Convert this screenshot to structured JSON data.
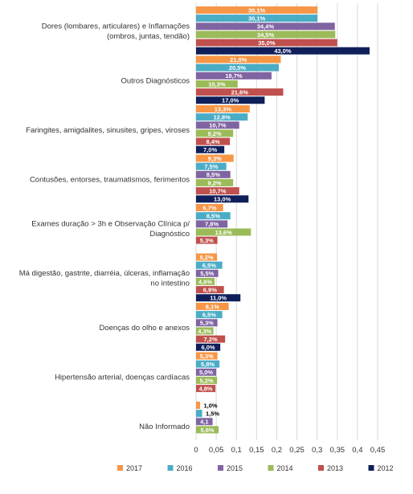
{
  "chart_data": {
    "type": "bar",
    "orientation": "horizontal",
    "categories": [
      [
        "Dores (lombares, articulares) e Inflamações",
        "(ombros, juntas, tendão)"
      ],
      [
        "Outros Diagnósticos"
      ],
      [
        "Faringites, amigdalites, sinusites, gripes, viroses"
      ],
      [
        "Contusões, entorses, traumatismos, ferimentos"
      ],
      [
        "Exames duração > 3h e Observação Clínica p/",
        "Diagnóstico"
      ],
      [
        "Má digestão, gastrite, diarréia, úlceras, inflamação",
        "no intestino"
      ],
      [
        "Doenças do olho e anexos"
      ],
      [
        "Hipertensão arterial, doenças cardíacas"
      ],
      [
        "Não Informado"
      ]
    ],
    "series": [
      {
        "name": "2017",
        "color": "#f79646",
        "values": [
          0.301,
          0.21,
          0.133,
          0.093,
          0.067,
          0.052,
          0.081,
          0.053,
          0.01
        ],
        "labels": [
          "30,1%",
          "21,0%",
          "13,3%",
          "9,3%",
          "6,7%",
          "5,2%",
          "8,1%",
          "5,3%",
          "1,0%"
        ]
      },
      {
        "name": "2016",
        "color": "#4bacc6",
        "values": [
          0.301,
          0.205,
          0.128,
          0.075,
          0.085,
          0.065,
          0.065,
          0.058,
          0.015
        ],
        "labels": [
          "30,1%",
          "20,5%",
          "12,8%",
          "7,5%",
          "8,5%",
          "6,5%",
          "6,5%",
          "5,8%",
          "1,5%"
        ]
      },
      {
        "name": "2015",
        "color": "#8064a2",
        "values": [
          0.344,
          0.187,
          0.107,
          0.085,
          0.078,
          0.055,
          0.053,
          0.05,
          0.041
        ],
        "labels": [
          "34,4%",
          "18,7%",
          "10,7%",
          "8,5%",
          "7,8%",
          "5,5%",
          "5,3%",
          "5,0%",
          "4,1"
        ]
      },
      {
        "name": "2014",
        "color": "#9bbb59",
        "values": [
          0.345,
          0.103,
          0.092,
          0.092,
          0.136,
          0.046,
          0.043,
          0.052,
          0.056
        ],
        "labels": [
          "34,5%",
          "10,3%",
          "9,2%",
          "9,2%",
          "13,6%",
          "4,6%",
          "4,3%",
          "5,2%",
          "5,6%"
        ]
      },
      {
        "name": "2013",
        "color": "#c0504d",
        "values": [
          0.35,
          0.216,
          0.084,
          0.107,
          0.053,
          0.069,
          0.072,
          0.048,
          null
        ],
        "labels": [
          "35,0%",
          "21,6%",
          "8,4%",
          "10,7%",
          "5,3%",
          "6,9%",
          "7,2%",
          "4,8%",
          ""
        ]
      },
      {
        "name": "2012",
        "color": "#0f1f5a",
        "values": [
          0.43,
          0.17,
          0.07,
          0.13,
          null,
          0.11,
          0.06,
          null,
          null
        ],
        "labels": [
          "43,0%",
          "17,0%",
          "7,0%",
          "13,0%",
          "",
          "11,0%",
          "6,0%",
          "",
          ""
        ]
      }
    ],
    "xticks": [
      "0",
      "0,05",
      "0,1",
      "0,15",
      "0,2",
      "0,25",
      "0,3",
      "0,35",
      "0,4",
      "0,45"
    ],
    "xlim": [
      0,
      0.45
    ],
    "grid": "vertical",
    "legend": "bottom"
  }
}
